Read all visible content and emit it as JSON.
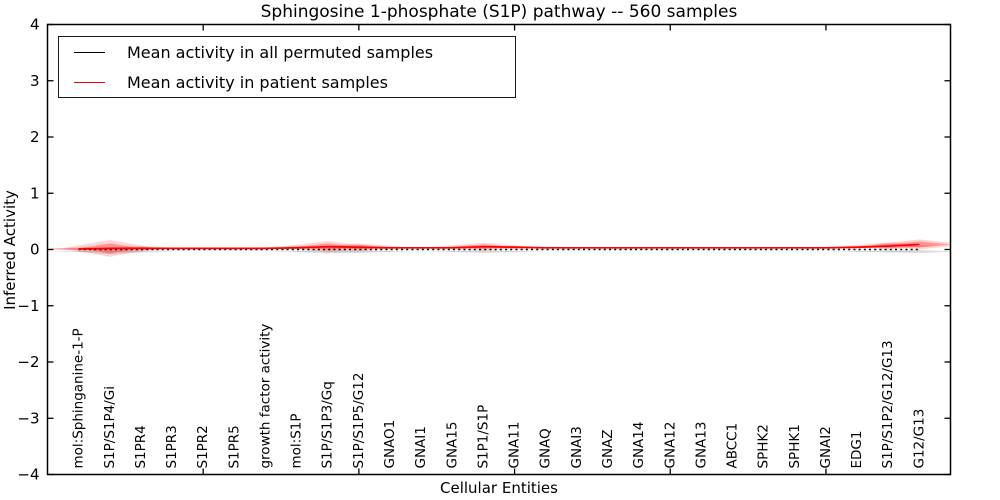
{
  "chart_data": {
    "type": "line",
    "title": "Sphingosine 1-phosphate (S1P) pathway -- 560 samples",
    "xlabel": "Cellular Entities",
    "ylabel": "Inferred Activity",
    "ylim": [
      -4,
      4
    ],
    "y_tick_step": 1,
    "grid": false,
    "legend_position": "upper left",
    "categories": [
      "mol:Sphinganine-1-P",
      "S1P/S1P4/Gi",
      "S1PR4",
      "S1PR3",
      "S1PR2",
      "S1PR5",
      "growth factor activity",
      "mol:S1P",
      "S1P/S1P3/Gq",
      "S1P/S1P5/G12",
      "GNAO1",
      "GNAI1",
      "GNA15",
      "S1P1/S1P",
      "GNA11",
      "GNAQ",
      "GNAI3",
      "GNAZ",
      "GNA14",
      "GNA12",
      "GNA13",
      "ABCC1",
      "SPHK2",
      "SPHK1",
      "GNAI2",
      "EDG1",
      "S1P/S1P2/G12/G13",
      "G12/G13"
    ],
    "series": [
      {
        "name": "Mean activity in all permuted samples",
        "color": "#000000",
        "style": "dotted",
        "values": [
          0.0,
          0.0,
          0.0,
          0.0,
          0.0,
          0.0,
          0.0,
          0.0,
          0.0,
          0.0,
          0.0,
          0.0,
          0.0,
          0.0,
          0.0,
          0.0,
          0.0,
          0.0,
          0.0,
          0.0,
          0.0,
          0.0,
          0.0,
          0.0,
          0.0,
          0.0,
          0.0,
          0.0
        ],
        "spread": [
          0.01,
          0.05,
          0.02,
          0.005,
          0.005,
          0.005,
          0.005,
          0.01,
          0.04,
          0.03,
          0.01,
          0.005,
          0.01,
          0.03,
          0.01,
          0.005,
          0.005,
          0.005,
          0.005,
          0.005,
          0.005,
          0.005,
          0.005,
          0.005,
          0.005,
          0.01,
          0.02,
          0.03
        ]
      },
      {
        "name": "Mean activity in patient samples",
        "color": "#ff0000",
        "style": "solid",
        "values": [
          0.01,
          0.02,
          0.02,
          0.02,
          0.02,
          0.02,
          0.02,
          0.03,
          0.05,
          0.04,
          0.03,
          0.03,
          0.03,
          0.05,
          0.04,
          0.03,
          0.03,
          0.03,
          0.03,
          0.03,
          0.03,
          0.03,
          0.03,
          0.03,
          0.03,
          0.04,
          0.06,
          0.09
        ],
        "spread": [
          0.03,
          0.15,
          0.04,
          0.01,
          0.01,
          0.01,
          0.01,
          0.03,
          0.1,
          0.07,
          0.02,
          0.01,
          0.02,
          0.07,
          0.03,
          0.01,
          0.01,
          0.01,
          0.01,
          0.01,
          0.01,
          0.01,
          0.01,
          0.01,
          0.01,
          0.02,
          0.06,
          0.09
        ]
      }
    ]
  }
}
